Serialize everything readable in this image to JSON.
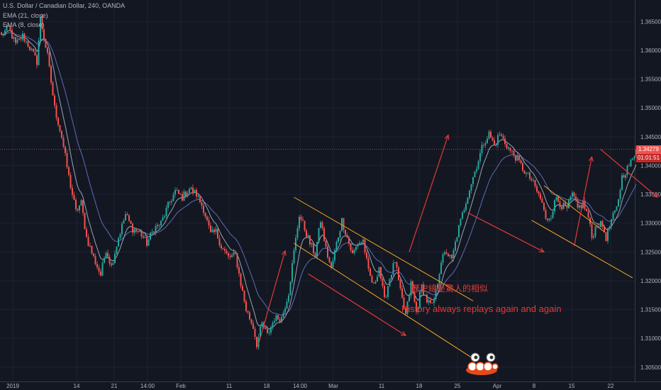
{
  "header": {
    "symbol_line": "U.S. Dollar / Canadian Dollar, 240, OANDA",
    "ema1_label": "EMA (21, close)",
    "ema2_label": "EMA (8, close)"
  },
  "price_tag": {
    "value": "1.34279",
    "timer": "01:01:51"
  },
  "annotations": {
    "chinese": "歷史總是驚人的相似",
    "english": "History always replays again and again"
  },
  "colors": {
    "background": "#131722",
    "up_candle": "#26a69a",
    "down_candle": "#ef5350",
    "ema_21": "#5d6db5",
    "ema_8": "#9aa6b9",
    "channel_lines": "#f5a623",
    "arrows": "#e53935",
    "price_line": "#ef5350"
  },
  "chart_data": {
    "type": "candlestick",
    "x_axis": {
      "tick_labels": [
        "2019",
        "14",
        "21",
        "14:00",
        "Feb",
        "11",
        "18",
        "14:00",
        "Mar",
        "11",
        "18",
        "25",
        "Apr",
        "8",
        "15",
        "22"
      ]
    },
    "y_axis": {
      "tick_labels": [
        "1.36500",
        "1.36000",
        "1.35500",
        "1.35000",
        "1.34500",
        "1.34000",
        "1.33500",
        "1.33000",
        "1.32500",
        "1.32000",
        "1.31500",
        "1.31000",
        "1.30500"
      ],
      "range": [
        1.303,
        1.368
      ]
    },
    "current_price": 1.34279,
    "close_path": [
      [
        0,
        1.3625
      ],
      [
        4,
        1.364
      ],
      [
        8,
        1.361
      ],
      [
        12,
        1.3625
      ],
      [
        16,
        1.3605
      ],
      [
        20,
        1.358
      ],
      [
        22,
        1.3655
      ],
      [
        26,
        1.359
      ],
      [
        30,
        1.35
      ],
      [
        34,
        1.345
      ],
      [
        38,
        1.338
      ],
      [
        42,
        1.332
      ],
      [
        45,
        1.3335
      ],
      [
        48,
        1.3275
      ],
      [
        52,
        1.324
      ],
      [
        56,
        1.321
      ],
      [
        59,
        1.3255
      ],
      [
        62,
        1.3225
      ],
      [
        66,
        1.3275
      ],
      [
        70,
        1.3315
      ],
      [
        74,
        1.329
      ],
      [
        78,
        1.3285
      ],
      [
        82,
        1.3265
      ],
      [
        86,
        1.329
      ],
      [
        90,
        1.33
      ],
      [
        94,
        1.333
      ],
      [
        98,
        1.3355
      ],
      [
        102,
        1.3345
      ],
      [
        106,
        1.336
      ],
      [
        110,
        1.335
      ],
      [
        114,
        1.3325
      ],
      [
        118,
        1.328
      ],
      [
        121,
        1.3285
      ],
      [
        124,
        1.326
      ],
      [
        128,
        1.324
      ],
      [
        132,
        1.3245
      ],
      [
        135,
        1.3195
      ],
      [
        138,
        1.315
      ],
      [
        142,
        1.312
      ],
      [
        144,
        1.309
      ],
      [
        147,
        1.3125
      ],
      [
        150,
        1.3105
      ],
      [
        154,
        1.3135
      ],
      [
        158,
        1.3135
      ],
      [
        162,
        1.318
      ],
      [
        165,
        1.325
      ],
      [
        168,
        1.3315
      ],
      [
        171,
        1.329
      ],
      [
        174,
        1.3265
      ],
      [
        177,
        1.3245
      ],
      [
        180,
        1.3305
      ],
      [
        183,
        1.3255
      ],
      [
        186,
        1.322
      ],
      [
        189,
        1.3265
      ],
      [
        192,
        1.3305
      ],
      [
        195,
        1.3275
      ],
      [
        198,
        1.3245
      ],
      [
        201,
        1.3265
      ],
      [
        204,
        1.327
      ],
      [
        207,
        1.3215
      ],
      [
        210,
        1.319
      ],
      [
        213,
        1.3225
      ],
      [
        216,
        1.3165
      ],
      [
        219,
        1.3205
      ],
      [
        222,
        1.3235
      ],
      [
        225,
        1.318
      ],
      [
        228,
        1.314
      ],
      [
        231,
        1.3195
      ],
      [
        234,
        1.3145
      ],
      [
        237,
        1.319
      ],
      [
        240,
        1.3165
      ],
      [
        243,
        1.3155
      ],
      [
        245,
        1.318
      ],
      [
        248,
        1.3235
      ],
      [
        251,
        1.325
      ],
      [
        254,
        1.3235
      ],
      [
        257,
        1.328
      ],
      [
        260,
        1.3315
      ],
      [
        263,
        1.335
      ],
      [
        266,
        1.338
      ],
      [
        269,
        1.341
      ],
      [
        272,
        1.344
      ],
      [
        275,
        1.3455
      ],
      [
        278,
        1.3435
      ],
      [
        281,
        1.3455
      ],
      [
        284,
        1.344
      ],
      [
        287,
        1.3425
      ],
      [
        290,
        1.3415
      ],
      [
        293,
        1.34
      ],
      [
        296,
        1.3385
      ],
      [
        299,
        1.3375
      ],
      [
        302,
        1.3355
      ],
      [
        305,
        1.3335
      ],
      [
        307,
        1.3305
      ],
      [
        310,
        1.3315
      ],
      [
        313,
        1.3345
      ],
      [
        316,
        1.333
      ],
      [
        319,
        1.3325
      ],
      [
        322,
        1.335
      ],
      [
        325,
        1.3325
      ],
      [
        328,
        1.3335
      ],
      [
        331,
        1.331
      ],
      [
        333,
        1.3275
      ],
      [
        336,
        1.33
      ],
      [
        339,
        1.3295
      ],
      [
        341,
        1.3275
      ],
      [
        344,
        1.3305
      ],
      [
        347,
        1.3325
      ],
      [
        350,
        1.338
      ],
      [
        353,
        1.3395
      ],
      [
        356,
        1.341
      ],
      [
        358,
        1.3428
      ]
    ],
    "ema": [
      {
        "name": "EMA (21, close)",
        "color": "#5d6db5"
      },
      {
        "name": "EMA (8, close)",
        "color": "#9aa6b9"
      }
    ],
    "drawings": {
      "channel_lines": [
        {
          "from": [
            165,
            1.3345
          ],
          "to": [
            266,
            1.3165
          ]
        },
        {
          "from": [
            165,
            1.3265
          ],
          "to": [
            266,
            1.3065
          ]
        },
        {
          "from": [
            306,
            1.3365
          ],
          "to": [
            340,
            1.3285
          ]
        },
        {
          "from": [
            299,
            1.3305
          ],
          "to": [
            356,
            1.3205
          ]
        }
      ],
      "arrows": [
        {
          "from": [
            145,
            1.309
          ],
          "to": [
            160,
            1.3252
          ]
        },
        {
          "from": [
            173,
            1.3212
          ],
          "to": [
            228,
            1.3105
          ]
        },
        {
          "from": [
            230,
            1.325
          ],
          "to": [
            252,
            1.3453
          ]
        },
        {
          "from": [
            263,
            1.3318
          ],
          "to": [
            306,
            1.325
          ]
        },
        {
          "from": [
            323,
            1.326
          ],
          "to": [
            333,
            1.3415
          ]
        },
        {
          "from": [
            338,
            1.3428
          ],
          "to": [
            370,
            1.3345
          ]
        }
      ]
    }
  }
}
